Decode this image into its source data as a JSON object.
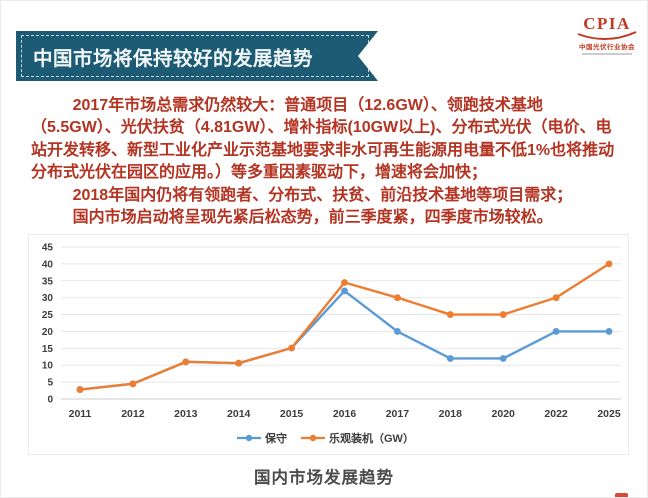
{
  "page": {
    "banner_title": "中国市场将保持较好的发展趋势",
    "caption": "国内市场发展趋势"
  },
  "logo": {
    "acronym": "CPIA",
    "org_name": "中国光伏行业协会",
    "color": "#c23a24"
  },
  "body_text": {
    "text_color": "#b33422",
    "paragraphs": [
      "2017年市场总需求仍然较大：普通项目（12.6GW）、领跑技术基地（5.5GW）、光伏扶贫（4.81GW）、增补指标(10GW以上)、分布式光伏（电价、电站开发转移、新型工业化产业示范基地要求非水可再生能源用电量不低1%也将推动分布式光伏在园区的应用。）等多重因素驱动下，增速将会加快；",
      "2018年国内仍将有领跑者、分布式、扶贫、前沿技术基地等项目需求；",
      "国内市场启动将呈现先紧后松态势，前三季度紧，四季度市场较松。"
    ]
  },
  "chart_data": {
    "type": "line",
    "title": "国内市场发展趋势",
    "categories": [
      "2011",
      "2012",
      "2013",
      "2014",
      "2015",
      "2016",
      "2017",
      "2018",
      "2020",
      "2022",
      "2025"
    ],
    "series": [
      {
        "name": "保守",
        "color": "#5b9bd5",
        "values": [
          2.8,
          4.5,
          11,
          10.6,
          15.1,
          32,
          20,
          12,
          12,
          20,
          20
        ]
      },
      {
        "name": "乐观装机（GW）",
        "color": "#ed7d31",
        "values": [
          2.8,
          4.5,
          11,
          10.6,
          15.1,
          34.5,
          30,
          25,
          25,
          30,
          40
        ]
      }
    ],
    "xlabel": "",
    "ylabel": "",
    "ylim": [
      0,
      45
    ],
    "ytick_step": 5,
    "grid": "horizontal",
    "gridline_color": "#e7e7e7",
    "axis_line_color": "#cdcdcd",
    "legend_position": "bottom",
    "marker": "circle"
  }
}
